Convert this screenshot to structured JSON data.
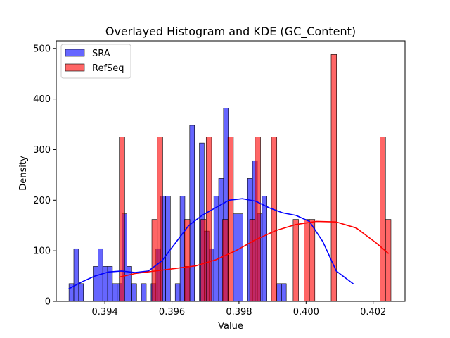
{
  "chart_data": {
    "type": "bar",
    "title": "Overlayed Histogram and KDE (GC_Content)",
    "xlabel": "Value",
    "ylabel": "Density",
    "xlim": [
      0.39255,
      0.40295
    ],
    "ylim": [
      0,
      515
    ],
    "xticks": [
      0.394,
      0.396,
      0.398,
      0.4,
      0.402
    ],
    "yticks": [
      0,
      100,
      200,
      300,
      400,
      500
    ],
    "grid": false,
    "legend_position": "top-left",
    "series": [
      {
        "name": "SRA",
        "color": "#0000ff",
        "alpha": 0.6,
        "bin_start": 0.39293,
        "bin_width": 0.000144,
        "values": [
          35,
          104,
          35,
          0,
          0,
          69,
          104,
          69,
          69,
          35,
          35,
          173,
          69,
          35,
          0,
          35,
          0,
          35,
          104,
          208,
          208,
          0,
          35,
          208,
          69,
          348,
          0,
          313,
          139,
          104,
          208,
          243,
          382,
          0,
          173,
          173,
          0,
          243,
          278,
          173,
          208,
          0,
          0,
          35,
          35,
          0
        ],
        "kde_x": [
          0.39293,
          0.3933,
          0.3937,
          0.3941,
          0.3945,
          0.3949,
          0.3953,
          0.3957,
          0.3961,
          0.3965,
          0.3969,
          0.3973,
          0.3977,
          0.3981,
          0.3985,
          0.3989,
          0.3993,
          0.3997,
          0.4001,
          0.4005,
          0.4009,
          0.4014
        ],
        "kde_y": [
          25,
          38,
          50,
          58,
          60,
          57,
          60,
          80,
          115,
          150,
          170,
          185,
          200,
          203,
          198,
          185,
          175,
          170,
          158,
          118,
          60,
          35
        ]
      },
      {
        "name": "RefSeq",
        "color": "#ff0000",
        "alpha": 0.6,
        "bin_start": 0.39443,
        "bin_width": 0.000162,
        "values": [
          325,
          0,
          0,
          0,
          0,
          0,
          162,
          325,
          0,
          0,
          0,
          0,
          162,
          0,
          0,
          162,
          325,
          0,
          0,
          162,
          325,
          0,
          0,
          0,
          162,
          325,
          0,
          0,
          325,
          0,
          0,
          0,
          162,
          0,
          162,
          162,
          0,
          0,
          0,
          488,
          0,
          0,
          0,
          0,
          0,
          0,
          0,
          0,
          325,
          162
        ],
        "kde_x": [
          0.39443,
          0.3949,
          0.3955,
          0.3961,
          0.3967,
          0.3973,
          0.3979,
          0.3985,
          0.3991,
          0.3997,
          0.4003,
          0.4009,
          0.4015,
          0.4021,
          0.40245
        ],
        "kde_y": [
          48,
          55,
          60,
          65,
          70,
          82,
          100,
          122,
          140,
          152,
          158,
          157,
          145,
          115,
          95
        ]
      }
    ]
  }
}
